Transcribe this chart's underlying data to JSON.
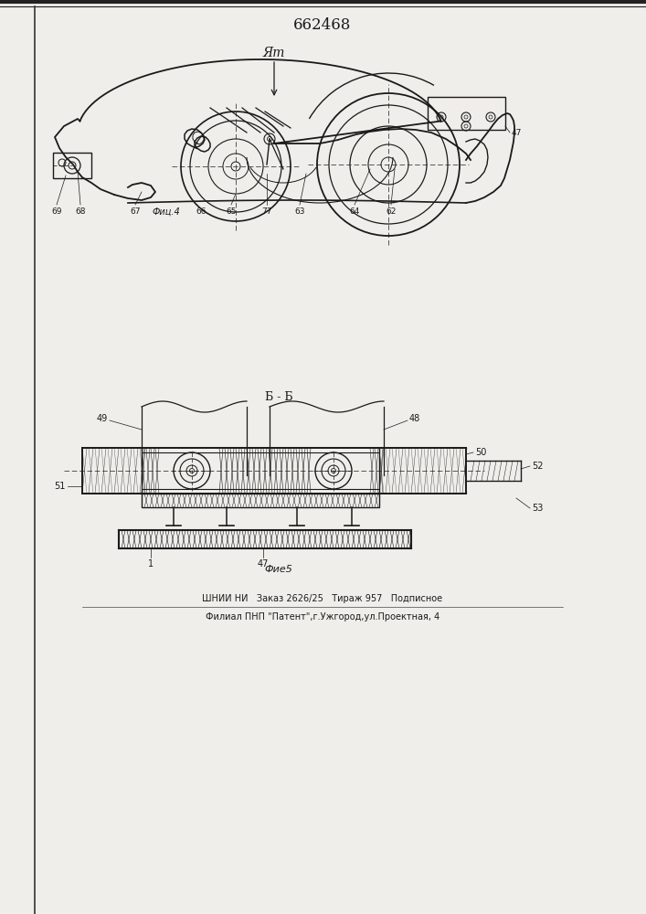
{
  "title_number": "662468",
  "fig4_label": "Фиц.4",
  "fig5_label": "Фие5",
  "fig_top_letter": "Ят",
  "fig_bb_label": "Б - Б",
  "bottom_line1": "ШНИИ НИ   Заказ 2626/25   Тираж 957   Подписное",
  "bottom_line2": "Филиал ПНП \"Патент\",г.Ужгород,ул.Проектная, 4",
  "bg_color": "#f0eeea",
  "line_color": "#1a1a1a",
  "page_width": 7.07,
  "page_height": 10.0
}
